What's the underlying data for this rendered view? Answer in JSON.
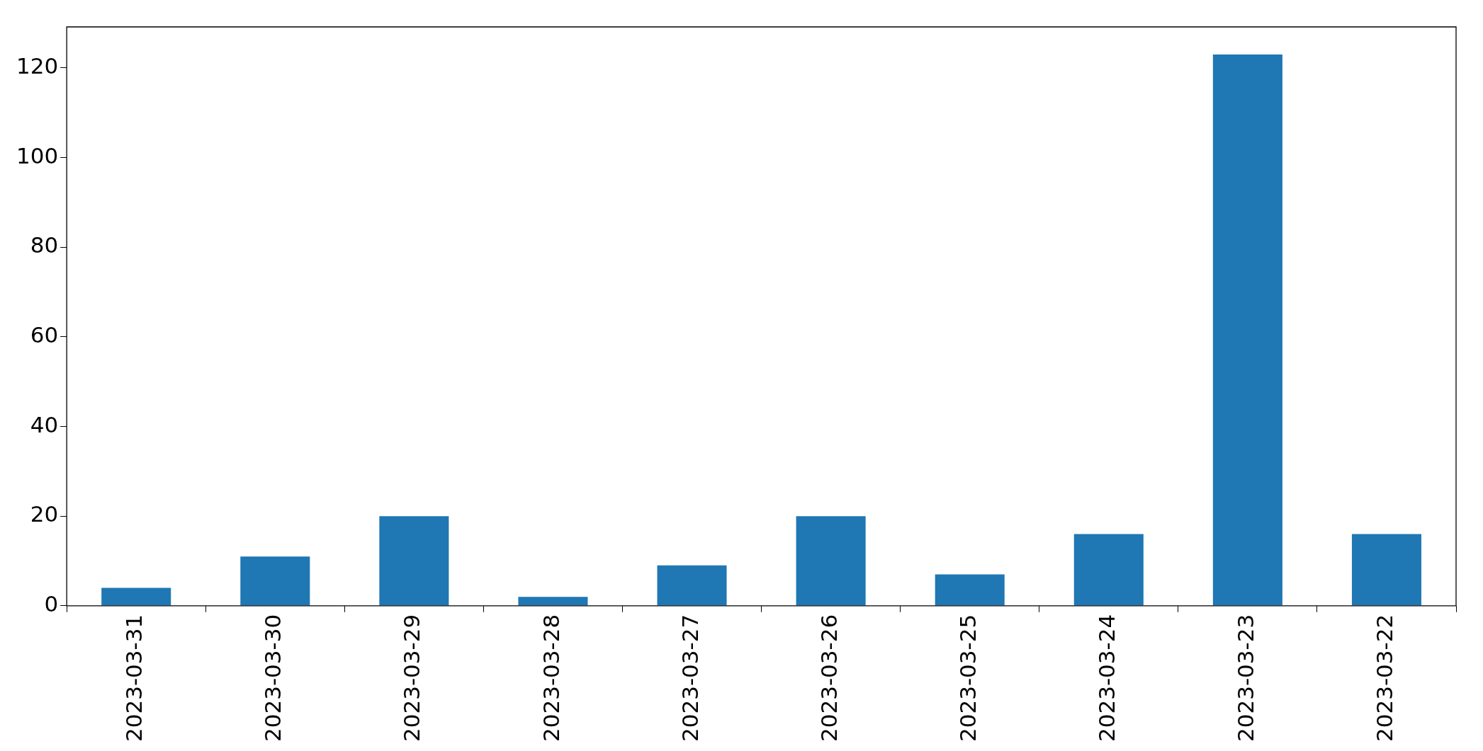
{
  "chart_data": {
    "type": "bar",
    "categories": [
      "2023-03-31",
      "2023-03-30",
      "2023-03-29",
      "2023-03-28",
      "2023-03-27",
      "2023-03-26",
      "2023-03-25",
      "2023-03-24",
      "2023-03-23",
      "2023-03-22"
    ],
    "values": [
      4,
      11,
      20,
      2,
      9,
      20,
      7,
      16,
      123,
      16
    ],
    "color": "#1f77b4",
    "ylim": [
      0,
      129.15
    ],
    "yticks": [
      0,
      20,
      40,
      60,
      80,
      100,
      120
    ],
    "grid": false,
    "legend": false
  }
}
